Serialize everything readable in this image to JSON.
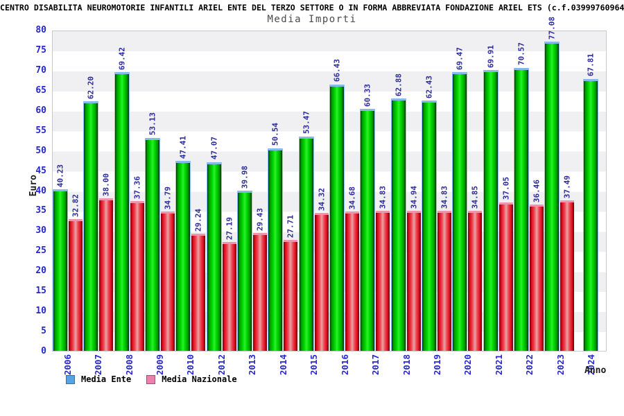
{
  "header": {
    "org_line": "CENTRO DISABILITA NEUROMOTORIE INFANTILI ARIEL ENTE DEL TERZO SETTORE O IN FORMA ABBREVIATA FONDAZIONE ARIEL ETS (c.f.03999760964"
  },
  "chart_data": {
    "type": "bar",
    "title": "Media Importi",
    "xlabel": "Anno",
    "ylabel": "Euro",
    "ylim": [
      0,
      80
    ],
    "ytick_step": 5,
    "yticks": [
      0,
      5,
      10,
      15,
      20,
      25,
      30,
      35,
      40,
      45,
      50,
      55,
      60,
      65,
      70,
      75,
      80
    ],
    "grid": "horizontal-alternating-bands",
    "legend_position": "bottom-left",
    "value_labels": "rotated-90-above-bars, two decimals",
    "categories": [
      "2006",
      "2007",
      "2008",
      "2009",
      "2010",
      "2012",
      "2013",
      "2014",
      "2015",
      "2016",
      "2017",
      "2018",
      "2019",
      "2020",
      "2021",
      "2022",
      "2023",
      "2024"
    ],
    "series": [
      {
        "name": "Media Ente",
        "bar_style": "green-gradient-cylinder",
        "values": [
          40.23,
          62.2,
          69.42,
          53.13,
          47.41,
          47.07,
          39.98,
          50.54,
          53.47,
          66.43,
          60.33,
          62.88,
          62.43,
          69.47,
          69.91,
          70.57,
          77.08,
          67.81
        ]
      },
      {
        "name": "Media Nazionale",
        "bar_style": "red-gradient-cylinder",
        "values": [
          32.82,
          38.0,
          37.36,
          34.79,
          29.24,
          27.19,
          29.43,
          27.71,
          34.32,
          34.68,
          34.83,
          34.94,
          34.83,
          34.85,
          37.05,
          36.46,
          37.49,
          null
        ]
      }
    ]
  },
  "colors": {
    "axis_tick_blue": "#2626cc",
    "value_label_navy": "#2b2b99",
    "band_gray": "#f0f0f2",
    "plot_border": "#c8c8c8",
    "green_bar_core": "#00dc00",
    "green_bar_cap": "#85b9e8",
    "red_bar_core": "#e01022",
    "red_bar_cap": "#f093ad",
    "legend_ente_swatch": "#58a2e6",
    "legend_nazionale_swatch": "#ee80ad",
    "title_gray": "#4a4a4a"
  }
}
